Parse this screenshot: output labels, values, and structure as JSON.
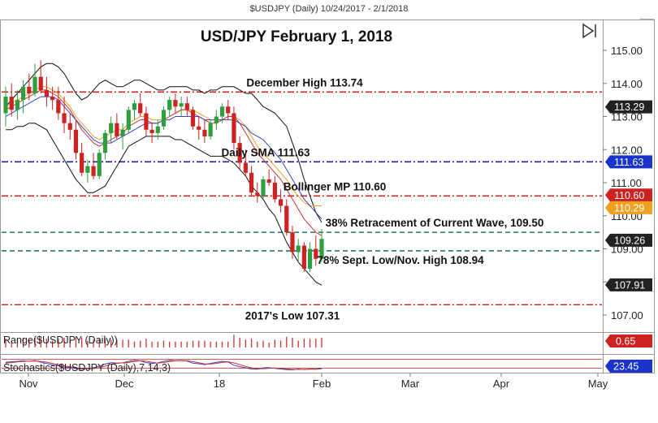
{
  "header": {
    "text": "$USDJPY (Daily)  10/24/2017 - 2/1/2018",
    "f_button": "F"
  },
  "chart_data": {
    "type": "candlestick",
    "title": "USD/JPY February 1, 2018",
    "x_ticks": [
      "Nov",
      "Dec",
      "18",
      "Feb",
      "Mar",
      "Apr",
      "May"
    ],
    "y_ticks": [
      107.0,
      108.0,
      109.0,
      110.0,
      111.0,
      112.0,
      113.0,
      114.0,
      115.0
    ],
    "ylim": [
      106.6,
      115.5
    ],
    "levels": [
      {
        "label": "December High 113.74",
        "value": 113.74,
        "color": "#cc2222",
        "style": "dashdot"
      },
      {
        "label": "Daily SMA 111.63",
        "value": 111.63,
        "color": "#1a1aa6",
        "style": "dashdot"
      },
      {
        "label": "Bollinger MP 110.60",
        "value": 110.6,
        "color": "#cc2222",
        "style": "dashdot"
      },
      {
        "label": "38% Retracement of Current Wave, 109.50",
        "value": 109.5,
        "color": "#1f7a5c",
        "style": "dashed"
      },
      {
        "label": "78% Sept. Low/Nov. High 108.94",
        "value": 108.94,
        "color": "#1f7a5c",
        "style": "dashed"
      },
      {
        "label": "2017's Low 107.31",
        "value": 107.31,
        "color": "#cc2222",
        "style": "dashdot"
      }
    ],
    "price_badges": [
      {
        "text": "113.29",
        "value": 113.29,
        "bg": "#222222"
      },
      {
        "text": "111.63",
        "value": 111.63,
        "bg": "#1a33cc"
      },
      {
        "text": "110.60",
        "value": 110.6,
        "bg": "#cc2222"
      },
      {
        "text": "110.29",
        "value": 110.29,
        "bg": "#f0a020"
      },
      {
        "text": "109.26",
        "value": 109.26,
        "bg": "#222222"
      },
      {
        "text": "107.91",
        "value": 107.91,
        "bg": "#222222"
      }
    ],
    "candles": [
      [
        113.1,
        113.9,
        112.7,
        113.6
      ],
      [
        113.6,
        114.0,
        113.0,
        113.2
      ],
      [
        113.2,
        113.8,
        112.9,
        113.5
      ],
      [
        113.5,
        114.1,
        113.1,
        113.9
      ],
      [
        113.9,
        114.3,
        113.5,
        113.7
      ],
      [
        113.7,
        114.6,
        113.6,
        114.2
      ],
      [
        114.2,
        114.7,
        113.7,
        113.8
      ],
      [
        113.8,
        114.2,
        113.3,
        113.6
      ],
      [
        113.6,
        113.9,
        113.2,
        113.5
      ],
      [
        113.5,
        113.9,
        112.9,
        113.1
      ],
      [
        113.1,
        113.6,
        112.5,
        112.8
      ],
      [
        112.8,
        113.1,
        112.3,
        112.6
      ],
      [
        112.6,
        112.9,
        111.7,
        111.9
      ],
      [
        111.9,
        112.2,
        111.2,
        111.3
      ],
      [
        111.3,
        111.7,
        111.0,
        111.5
      ],
      [
        111.5,
        111.9,
        111.1,
        111.2
      ],
      [
        111.2,
        112.0,
        111.1,
        111.9
      ],
      [
        111.9,
        112.6,
        111.7,
        112.5
      ],
      [
        112.5,
        113.0,
        112.2,
        112.8
      ],
      [
        112.8,
        113.1,
        112.3,
        112.4
      ],
      [
        112.4,
        112.8,
        112.0,
        112.6
      ],
      [
        112.6,
        113.3,
        112.5,
        113.2
      ],
      [
        113.2,
        113.5,
        112.9,
        113.4
      ],
      [
        113.4,
        113.7,
        113.0,
        113.1
      ],
      [
        113.1,
        113.3,
        112.4,
        112.6
      ],
      [
        112.6,
        112.8,
        112.2,
        112.5
      ],
      [
        112.5,
        112.9,
        112.3,
        112.7
      ],
      [
        112.7,
        113.3,
        112.6,
        113.2
      ],
      [
        113.2,
        113.6,
        113.0,
        113.5
      ],
      [
        113.5,
        113.7,
        113.1,
        113.3
      ],
      [
        113.3,
        113.6,
        113.0,
        113.4
      ],
      [
        113.4,
        113.6,
        113.0,
        113.2
      ],
      [
        113.2,
        113.3,
        112.6,
        112.7
      ],
      [
        112.7,
        113.0,
        112.3,
        112.6
      ],
      [
        112.6,
        112.9,
        112.2,
        112.4
      ],
      [
        112.4,
        112.9,
        112.3,
        112.8
      ],
      [
        112.8,
        113.2,
        112.6,
        113.0
      ],
      [
        113.0,
        113.4,
        112.8,
        113.3
      ],
      [
        113.3,
        113.5,
        112.9,
        113.1
      ],
      [
        113.1,
        113.3,
        112.0,
        112.2
      ],
      [
        112.2,
        112.4,
        111.4,
        111.6
      ],
      [
        111.6,
        112.0,
        111.2,
        111.3
      ],
      [
        111.3,
        111.5,
        110.6,
        110.7
      ],
      [
        110.7,
        111.0,
        110.4,
        110.6
      ],
      [
        110.6,
        111.2,
        110.5,
        111.1
      ],
      [
        111.1,
        111.4,
        110.9,
        111.0
      ],
      [
        111.0,
        111.2,
        110.4,
        110.5
      ],
      [
        110.5,
        110.8,
        110.1,
        110.3
      ],
      [
        110.3,
        110.5,
        109.4,
        109.5
      ],
      [
        109.5,
        109.7,
        108.7,
        108.9
      ],
      [
        108.9,
        109.3,
        108.6,
        109.1
      ],
      [
        109.1,
        109.2,
        108.3,
        108.4
      ],
      [
        108.4,
        109.2,
        108.3,
        109.0
      ],
      [
        109.0,
        109.4,
        108.5,
        108.7
      ],
      [
        108.7,
        109.6,
        108.6,
        109.3
      ]
    ],
    "upper_band": [
      113.3,
      113.5,
      113.7,
      113.9,
      114.1,
      114.3,
      114.5,
      114.6,
      114.6,
      114.5,
      114.3,
      114.0,
      113.7,
      113.5,
      113.6,
      113.8,
      114.0,
      114.1,
      114.0,
      113.9,
      113.9,
      114.0,
      114.1,
      114.1,
      114.0,
      113.9,
      113.8,
      113.8,
      113.9,
      113.9,
      113.9,
      113.9,
      113.8,
      113.8,
      113.7,
      113.8,
      113.8,
      113.9,
      113.9,
      113.9,
      113.8,
      113.7,
      113.7,
      113.5,
      113.3,
      113.2,
      113.1,
      112.9,
      112.7,
      112.2,
      111.7,
      111.1,
      110.6,
      110.1,
      109.8
    ],
    "lower_band": [
      112.6,
      112.6,
      112.7,
      112.7,
      112.8,
      112.8,
      112.7,
      112.6,
      112.3,
      112.0,
      111.7,
      111.4,
      111.1,
      110.9,
      110.7,
      110.7,
      110.8,
      110.9,
      111.2,
      111.5,
      111.8,
      112.1,
      112.2,
      112.3,
      112.4,
      112.4,
      112.4,
      112.4,
      112.4,
      112.3,
      112.3,
      112.2,
      112.1,
      112.0,
      111.9,
      111.8,
      111.8,
      111.8,
      111.7,
      111.6,
      111.4,
      111.2,
      110.9,
      110.7,
      110.5,
      110.2,
      110.0,
      109.6,
      109.2,
      108.9,
      108.6,
      108.4,
      108.2,
      108.0,
      107.9
    ],
    "ma_blue": [
      113.0,
      113.1,
      113.2,
      113.3,
      113.4,
      113.5,
      113.6,
      113.6,
      113.6,
      113.5,
      113.3,
      113.1,
      112.9,
      112.7,
      112.5,
      112.3,
      112.2,
      112.2,
      112.2,
      112.3,
      112.4,
      112.5,
      112.6,
      112.7,
      112.8,
      112.8,
      112.8,
      112.9,
      112.9,
      113.0,
      113.0,
      113.0,
      113.0,
      113.0,
      112.9,
      112.9,
      112.9,
      112.9,
      112.9,
      112.9,
      112.8,
      112.7,
      112.5,
      112.4,
      112.3,
      112.1,
      111.9,
      111.7,
      111.4,
      111.1,
      110.8,
      110.5,
      110.3,
      110.1,
      109.9
    ],
    "ma_red": [
      113.2,
      113.3,
      113.4,
      113.5,
      113.6,
      113.7,
      113.8,
      113.8,
      113.7,
      113.6,
      113.4,
      113.2,
      112.9,
      112.6,
      112.4,
      112.2,
      112.1,
      112.2,
      112.3,
      112.4,
      112.5,
      112.7,
      112.8,
      112.9,
      112.9,
      112.8,
      112.8,
      112.9,
      113.0,
      113.1,
      113.2,
      113.2,
      113.1,
      113.0,
      112.9,
      112.8,
      112.8,
      112.9,
      113.0,
      113.0,
      112.8,
      112.5,
      112.2,
      111.9,
      111.7,
      111.5,
      111.3,
      111.1,
      110.8,
      110.5,
      110.2,
      109.9,
      109.7,
      109.5,
      109.4
    ],
    "ma_orange": [
      113.3,
      113.4,
      113.5,
      113.6,
      113.7,
      113.8,
      113.9,
      113.9,
      113.8,
      113.7,
      113.5,
      113.3,
      113.0,
      112.8,
      112.6,
      112.4,
      112.3,
      112.4,
      112.5,
      112.6,
      112.6,
      112.8,
      112.9,
      113.0,
      113.0,
      112.9,
      112.9,
      112.9,
      113.0,
      113.1,
      113.2,
      113.2,
      113.2,
      113.1,
      113.0,
      112.9,
      112.9,
      112.9,
      113.0,
      113.0,
      112.9,
      112.7,
      112.4,
      112.1,
      111.9,
      111.7,
      111.5,
      111.3,
      111.1,
      110.8,
      110.6,
      110.4,
      110.3,
      110.3,
      110.3
    ],
    "range_bars": [
      0.9,
      0.7,
      0.8,
      1.0,
      0.8,
      1.0,
      1.0,
      0.9,
      0.7,
      0.9,
      1.0,
      0.7,
      1.1,
      1.0,
      0.7,
      0.8,
      0.9,
      0.9,
      0.8,
      0.8,
      0.8,
      0.8,
      0.6,
      0.7,
      0.9,
      0.6,
      0.6,
      0.7,
      0.6,
      0.6,
      0.6,
      0.6,
      0.7,
      0.7,
      0.7,
      0.6,
      0.6,
      0.6,
      0.6,
      1.3,
      1.0,
      0.8,
      0.9,
      0.6,
      0.7,
      0.5,
      0.8,
      0.7,
      1.1,
      1.0,
      0.7,
      0.9,
      0.9,
      0.9,
      1.0
    ],
    "stoch_k": [
      60,
      64,
      66,
      70,
      66,
      72,
      60,
      52,
      42,
      36,
      28,
      24,
      16,
      12,
      18,
      20,
      34,
      48,
      58,
      54,
      56,
      66,
      74,
      70,
      58,
      52,
      56,
      66,
      74,
      70,
      72,
      68,
      54,
      50,
      44,
      52,
      60,
      66,
      62,
      40,
      30,
      22,
      14,
      12,
      22,
      24,
      18,
      14,
      10,
      8,
      14,
      10,
      14,
      12,
      20
    ],
    "stoch_d": [
      55,
      58,
      62,
      66,
      67,
      69,
      66,
      61,
      52,
      43,
      35,
      29,
      23,
      17,
      15,
      17,
      24,
      34,
      47,
      53,
      56,
      59,
      65,
      70,
      67,
      60,
      55,
      58,
      65,
      70,
      72,
      70,
      64,
      57,
      49,
      48,
      52,
      59,
      63,
      56,
      44,
      31,
      22,
      16,
      16,
      19,
      21,
      19,
      14,
      11,
      11,
      11,
      13,
      12,
      15
    ],
    "range_label": "Range($USDJPY (Daily))",
    "range_value": "0.65",
    "stoch_label": "Stochastics($USDJPY (Daily),7,14,3)",
    "stoch_value": "23.45"
  },
  "colors": {
    "up": "#2e9e3e",
    "down": "#cc2222",
    "bands": "#111111",
    "ma_blue": "#3344cc",
    "ma_red": "#cc3333",
    "ma_orange": "#f0a020"
  }
}
